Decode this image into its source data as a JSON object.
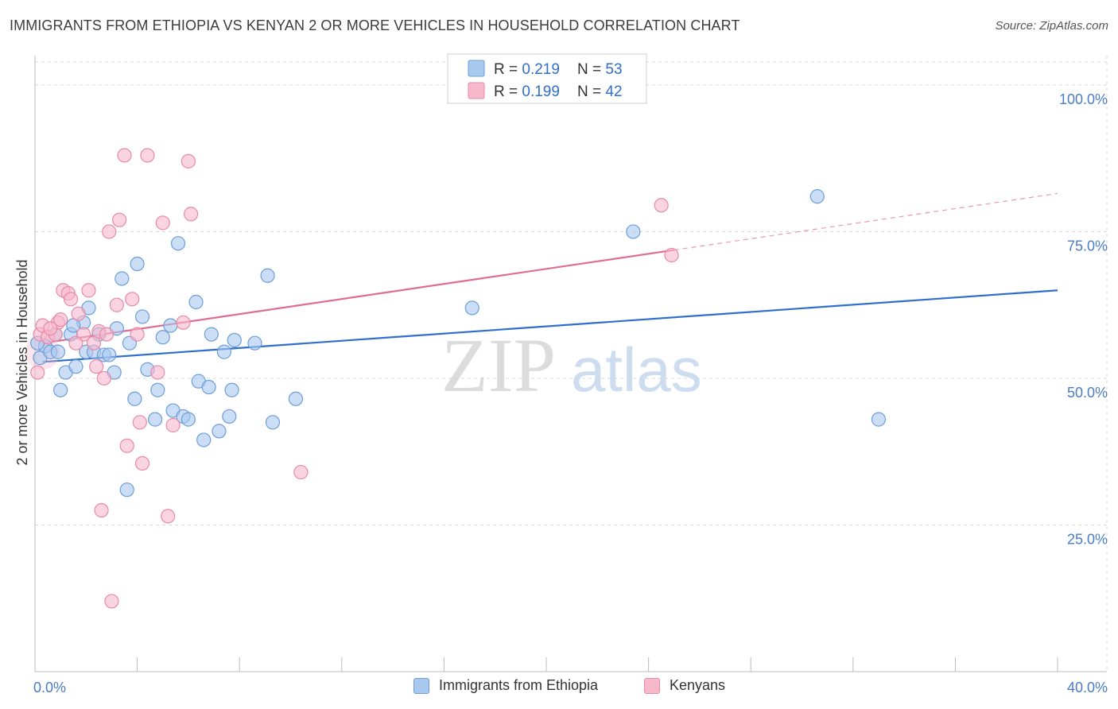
{
  "title": "IMMIGRANTS FROM ETHIOPIA VS KENYAN 2 OR MORE VEHICLES IN HOUSEHOLD CORRELATION CHART",
  "source": "Source: ZipAtlas.com",
  "watermark": {
    "zip": "ZIP",
    "atlas": "atlas"
  },
  "colors": {
    "blue_fill": "#a9c8ee",
    "blue_stroke": "#6d9ed8",
    "blue_line": "#2f6fcc",
    "pink_fill": "#f7b8cc",
    "pink_stroke": "#e88aa8",
    "pink_line": "#e06b93",
    "axis_label": "#4a7cc7",
    "grid": "#d9d9d9"
  },
  "legend_top": [
    {
      "r_label": "R = ",
      "r_value": "0.219",
      "n_label": "N = ",
      "n_value": "53",
      "color": "blue"
    },
    {
      "r_label": "R = ",
      "r_value": "0.199",
      "n_label": "N = ",
      "n_value": "42",
      "color": "pink"
    }
  ],
  "legend_bottom": [
    {
      "label": "Immigrants from Ethiopia",
      "color": "blue"
    },
    {
      "label": "Kenyans",
      "color": "pink"
    }
  ],
  "chart_data": {
    "type": "scatter",
    "ylabel": "2 or more Vehicles in Household",
    "xlim": [
      0,
      40
    ],
    "ylim": [
      0,
      105
    ],
    "x_tick_labels": [
      {
        "value": 0,
        "label": "0.0%"
      },
      {
        "value": 40,
        "label": "40.0%"
      }
    ],
    "y_tick_labels": [
      {
        "value": 25,
        "label": "25.0%"
      },
      {
        "value": 50,
        "label": "50.0%"
      },
      {
        "value": 75,
        "label": "75.0%"
      },
      {
        "value": 100,
        "label": "100.0%"
      }
    ],
    "grid": true,
    "series": [
      {
        "name": "Immigrants from Ethiopia",
        "color": "blue",
        "trend": {
          "x": [
            0.3,
            40
          ],
          "y": [
            52.8,
            65.0
          ],
          "dashed_from": null
        },
        "points": [
          [
            0.2,
            53.5
          ],
          [
            0.4,
            55.5
          ],
          [
            0.6,
            54.5
          ],
          [
            0.8,
            57.5
          ],
          [
            0.9,
            54.5
          ],
          [
            1.0,
            48.0
          ],
          [
            1.2,
            51.0
          ],
          [
            1.4,
            57.5
          ],
          [
            1.6,
            52.0
          ],
          [
            1.9,
            59.5
          ],
          [
            2.0,
            54.5
          ],
          [
            2.1,
            62.0
          ],
          [
            2.3,
            54.5
          ],
          [
            2.5,
            57.5
          ],
          [
            2.7,
            54.0
          ],
          [
            2.9,
            54.0
          ],
          [
            3.1,
            51.0
          ],
          [
            3.2,
            58.5
          ],
          [
            3.4,
            67.0
          ],
          [
            3.6,
            31.0
          ],
          [
            3.7,
            56.0
          ],
          [
            3.9,
            46.5
          ],
          [
            4.0,
            69.5
          ],
          [
            4.2,
            60.5
          ],
          [
            4.4,
            51.5
          ],
          [
            4.7,
            43.0
          ],
          [
            4.8,
            48.0
          ],
          [
            5.0,
            57.0
          ],
          [
            5.3,
            59.0
          ],
          [
            5.4,
            44.5
          ],
          [
            5.6,
            73.0
          ],
          [
            5.8,
            43.5
          ],
          [
            6.0,
            43.0
          ],
          [
            6.3,
            63.0
          ],
          [
            6.4,
            49.5
          ],
          [
            6.6,
            39.5
          ],
          [
            6.8,
            48.5
          ],
          [
            6.9,
            57.5
          ],
          [
            7.2,
            41.0
          ],
          [
            7.4,
            54.5
          ],
          [
            7.6,
            43.5
          ],
          [
            7.7,
            48.0
          ],
          [
            7.8,
            56.5
          ],
          [
            8.6,
            56.0
          ],
          [
            9.1,
            67.5
          ],
          [
            9.3,
            42.5
          ],
          [
            10.2,
            46.5
          ],
          [
            17.1,
            62.0
          ],
          [
            23.4,
            75.0
          ],
          [
            30.6,
            81.0
          ],
          [
            33.0,
            43.0
          ],
          [
            0.1,
            56.0
          ],
          [
            1.5,
            59.0
          ]
        ]
      },
      {
        "name": "Kenyans",
        "color": "pink",
        "trend": {
          "x": [
            0.3,
            40
          ],
          "y": [
            56.0,
            81.5
          ],
          "dashed_from": 25.0
        },
        "points": [
          [
            0.1,
            51.0
          ],
          [
            0.2,
            57.5
          ],
          [
            0.3,
            59.0
          ],
          [
            0.5,
            57.0
          ],
          [
            0.8,
            57.5
          ],
          [
            0.9,
            59.5
          ],
          [
            1.0,
            60.0
          ],
          [
            1.1,
            65.0
          ],
          [
            1.3,
            64.5
          ],
          [
            1.4,
            63.5
          ],
          [
            1.7,
            61.0
          ],
          [
            1.9,
            57.5
          ],
          [
            2.1,
            65.0
          ],
          [
            2.3,
            56.0
          ],
          [
            2.4,
            52.0
          ],
          [
            2.5,
            58.0
          ],
          [
            2.6,
            27.5
          ],
          [
            2.7,
            50.0
          ],
          [
            2.8,
            57.5
          ],
          [
            2.9,
            75.0
          ],
          [
            3.0,
            12.0
          ],
          [
            3.2,
            62.5
          ],
          [
            3.3,
            77.0
          ],
          [
            3.5,
            88.0
          ],
          [
            3.6,
            38.5
          ],
          [
            3.8,
            63.5
          ],
          [
            4.0,
            57.5
          ],
          [
            4.1,
            42.5
          ],
          [
            4.2,
            35.5
          ],
          [
            4.4,
            88.0
          ],
          [
            4.8,
            51.0
          ],
          [
            5.0,
            76.5
          ],
          [
            5.2,
            26.5
          ],
          [
            5.8,
            59.5
          ],
          [
            6.0,
            87.0
          ],
          [
            6.1,
            78.0
          ],
          [
            10.4,
            34.0
          ],
          [
            24.5,
            79.5
          ],
          [
            24.9,
            71.0
          ],
          [
            0.6,
            58.5
          ],
          [
            1.6,
            56.0
          ],
          [
            5.4,
            42.0
          ]
        ]
      }
    ]
  }
}
